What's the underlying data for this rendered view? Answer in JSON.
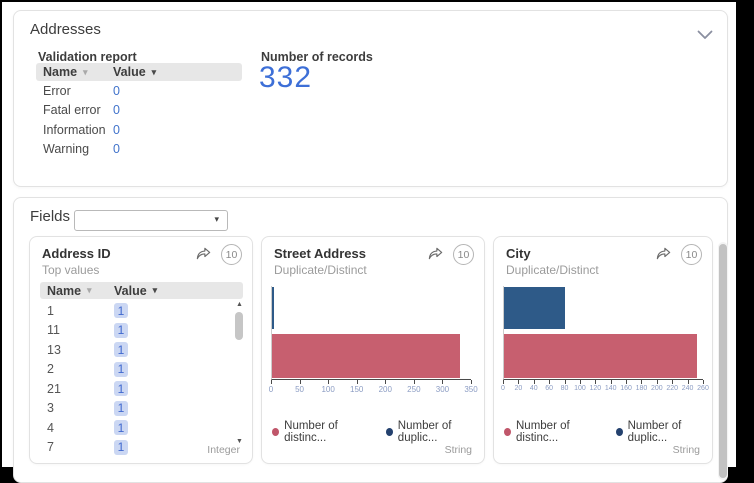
{
  "colors": {
    "accent_blue": "#3d6fd7",
    "link_blue": "#4173cb",
    "bar_red": "#c75f6f",
    "bar_blue": "#2e5a88",
    "legend_red": "#c0566a",
    "legend_blue": "#24416e",
    "table_header_bg": "#e7e7e7",
    "chip_bg": "#cbd7f3"
  },
  "icons": {
    "collapse": "chevron-down-icon",
    "share": "share-icon",
    "sort": "sort-caret-icon",
    "dropdown": "dropdown-caret-icon",
    "scroll_up": "scroll-up-arrow-icon",
    "scroll_down": "scroll-down-arrow-icon"
  },
  "addresses": {
    "title": "Addresses",
    "validation_report": {
      "title": "Validation report",
      "name_header": "Name",
      "value_header": "Value",
      "rows": [
        {
          "name": "Error",
          "value": "0"
        },
        {
          "name": "Fatal error",
          "value": "0"
        },
        {
          "name": "Information",
          "value": "0"
        },
        {
          "name": "Warning",
          "value": "0"
        }
      ]
    },
    "records": {
      "label": "Number of records",
      "value": "332"
    }
  },
  "fields": {
    "label": "Fields",
    "filter": {
      "value": "",
      "placeholder": ""
    },
    "cards": [
      {
        "title": "Address ID",
        "subtitle": "Top values",
        "badge": "10",
        "type": "Integer",
        "name_header": "Name",
        "value_header": "Value",
        "rows": [
          {
            "name": "1",
            "value": "1"
          },
          {
            "name": "11",
            "value": "1"
          },
          {
            "name": "13",
            "value": "1"
          },
          {
            "name": "2",
            "value": "1"
          },
          {
            "name": "21",
            "value": "1"
          },
          {
            "name": "3",
            "value": "1"
          },
          {
            "name": "4",
            "value": "1"
          },
          {
            "name": "7",
            "value": "1"
          }
        ]
      },
      {
        "title": "Street Address",
        "subtitle": "Duplicate/Distinct",
        "badge": "10",
        "type": "String"
      },
      {
        "title": "City",
        "subtitle": "Duplicate/Distinct",
        "badge": "10",
        "type": "String"
      }
    ]
  },
  "chart_data": [
    {
      "type": "bar",
      "orientation": "horizontal",
      "field": "Street Address",
      "metric": "Duplicate/Distinct",
      "bars": [
        {
          "name": "number-of-duplicate-records",
          "value": 2,
          "color": "#2e5a88"
        },
        {
          "name": "number-of-distinct-records",
          "value": 330,
          "color": "#c75f6f"
        }
      ],
      "xlim": [
        0,
        350
      ],
      "xticks": [
        0,
        50,
        100,
        150,
        200,
        250,
        300,
        350
      ],
      "legend": [
        {
          "label": "Number of distinc...",
          "color": "#c0566a"
        },
        {
          "label": "Number of duplic...",
          "color": "#24416e"
        }
      ],
      "legend_position": "bottom"
    },
    {
      "type": "bar",
      "orientation": "horizontal",
      "field": "City",
      "metric": "Duplicate/Distinct",
      "bars": [
        {
          "name": "number-of-duplicate-records",
          "value": 80,
          "color": "#2e5a88"
        },
        {
          "name": "number-of-distinct-records",
          "value": 252,
          "color": "#c75f6f"
        }
      ],
      "xlim": [
        0,
        260
      ],
      "xticks": [
        0,
        20,
        40,
        60,
        80,
        100,
        120,
        140,
        160,
        180,
        200,
        220,
        240,
        260
      ],
      "legend": [
        {
          "label": "Number of distinc...",
          "color": "#c0566a"
        },
        {
          "label": "Number of duplic...",
          "color": "#24416e"
        }
      ],
      "legend_position": "bottom"
    }
  ]
}
